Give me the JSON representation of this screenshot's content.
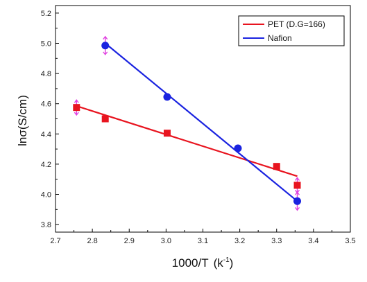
{
  "chart_data": {
    "type": "scatter",
    "xlabel": "1000/T",
    "xunit": "(k",
    "xunit_exp": "-1",
    "xunit_close": ")",
    "ylabel": "lnσ(S/cm)",
    "xlim": [
      2.7,
      3.5
    ],
    "ylim": [
      3.75,
      5.25
    ],
    "xticks": [
      "2.7",
      "2.8",
      "2.9",
      "3.0",
      "3.1",
      "3.2",
      "3.3",
      "3.4",
      "3.5"
    ],
    "yticks": [
      "3.8",
      "4.0",
      "4.2",
      "4.4",
      "4.6",
      "4.8",
      "5.0",
      "5.2"
    ],
    "grid": false,
    "legend_position": "top-right",
    "error_bar_color": "#e040e0",
    "series": [
      {
        "name": "PET (D.G=166)",
        "color": "#e8141f",
        "marker": "square",
        "x": [
          2.757,
          2.835,
          3.003,
          3.3,
          3.356
        ],
        "y": [
          4.575,
          4.5,
          4.405,
          4.185,
          4.06
        ],
        "yerr": [
          0.05,
          0.0,
          0.0,
          0.0,
          0.05
        ],
        "fit": {
          "x": [
            2.757,
            3.356
          ],
          "y": [
            4.585,
            4.12
          ]
        }
      },
      {
        "name": "Nafion",
        "color": "#1a23e0",
        "marker": "circle",
        "x": [
          2.835,
          3.003,
          3.195,
          3.356
        ],
        "y": [
          4.985,
          4.645,
          4.305,
          3.955
        ],
        "yerr": [
          0.06,
          0.0,
          0.0,
          0.06
        ],
        "fit": {
          "x": [
            2.835,
            3.356
          ],
          "y": [
            5.0,
            3.955
          ]
        }
      }
    ]
  }
}
